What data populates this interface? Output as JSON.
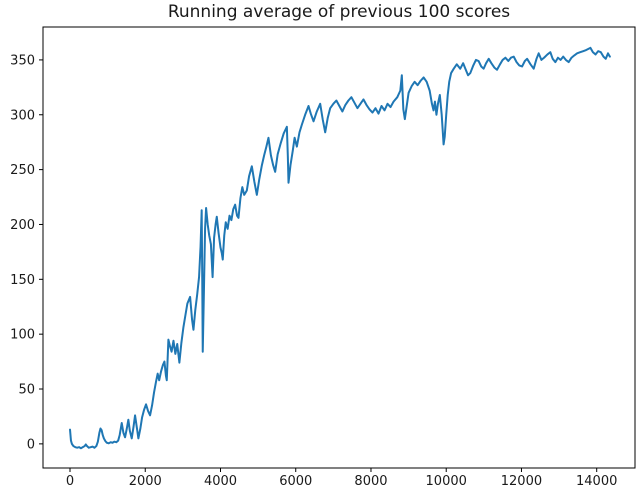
{
  "figure": {
    "background": "#ffffff"
  },
  "chart_data": {
    "type": "line",
    "title": "Running average of previous 100 scores",
    "xlabel": "",
    "ylabel": "",
    "grid": false,
    "legend": null,
    "xlim": [
      -718,
      15018
    ],
    "ylim": [
      -22,
      380
    ],
    "x_ticks": [
      0,
      2000,
      4000,
      6000,
      8000,
      10000,
      12000,
      14000
    ],
    "y_ticks": [
      0,
      50,
      100,
      150,
      200,
      250,
      300,
      350
    ],
    "axis_color": "#000000",
    "series": [
      {
        "name": "running-average",
        "color": "#1f77b4",
        "points": [
          [
            0,
            13
          ],
          [
            25,
            3
          ],
          [
            50,
            0
          ],
          [
            90,
            -2
          ],
          [
            140,
            -3
          ],
          [
            190,
            -3.5
          ],
          [
            240,
            -3
          ],
          [
            290,
            -4
          ],
          [
            340,
            -3
          ],
          [
            390,
            -2
          ],
          [
            420,
            -0.5
          ],
          [
            450,
            -2
          ],
          [
            500,
            -3.5
          ],
          [
            550,
            -3
          ],
          [
            600,
            -2.5
          ],
          [
            650,
            -3.5
          ],
          [
            700,
            -2
          ],
          [
            740,
            2
          ],
          [
            780,
            10
          ],
          [
            810,
            14
          ],
          [
            840,
            12.5
          ],
          [
            870,
            8
          ],
          [
            900,
            5
          ],
          [
            940,
            2.5
          ],
          [
            980,
            1
          ],
          [
            1030,
            0.5
          ],
          [
            1080,
            1.5
          ],
          [
            1130,
            1
          ],
          [
            1180,
            2
          ],
          [
            1230,
            1.5
          ],
          [
            1280,
            3
          ],
          [
            1320,
            8
          ],
          [
            1375,
            19
          ],
          [
            1420,
            10
          ],
          [
            1463,
            6
          ],
          [
            1510,
            14
          ],
          [
            1551,
            22
          ],
          [
            1590,
            12
          ],
          [
            1641,
            5
          ],
          [
            1690,
            16
          ],
          [
            1729,
            26
          ],
          [
            1780,
            14
          ],
          [
            1817,
            5
          ],
          [
            1870,
            14
          ],
          [
            1915,
            24
          ],
          [
            1968,
            31
          ],
          [
            2021,
            36
          ],
          [
            2074,
            30
          ],
          [
            2128,
            26
          ],
          [
            2181,
            35
          ],
          [
            2234,
            47
          ],
          [
            2288,
            57
          ],
          [
            2330,
            64
          ],
          [
            2370,
            58
          ],
          [
            2420,
            66
          ],
          [
            2470,
            72
          ],
          [
            2510,
            75
          ],
          [
            2550,
            62
          ],
          [
            2572,
            58
          ],
          [
            2615,
            95
          ],
          [
            2650,
            90
          ],
          [
            2700,
            84
          ],
          [
            2750,
            94
          ],
          [
            2800,
            82
          ],
          [
            2850,
            91
          ],
          [
            2907,
            74
          ],
          [
            2960,
            92
          ],
          [
            3013,
            106
          ],
          [
            3066,
            117
          ],
          [
            3120,
            128
          ],
          [
            3192,
            134
          ],
          [
            3245,
            113
          ],
          [
            3281,
            104
          ],
          [
            3330,
            122
          ],
          [
            3380,
            136
          ],
          [
            3430,
            152
          ],
          [
            3470,
            180
          ],
          [
            3500,
            213
          ],
          [
            3515,
            150
          ],
          [
            3528,
            84
          ],
          [
            3560,
            140
          ],
          [
            3590,
            196
          ],
          [
            3617,
            215
          ],
          [
            3660,
            200
          ],
          [
            3700,
            190
          ],
          [
            3745,
            182
          ],
          [
            3790,
            152
          ],
          [
            3830,
            188
          ],
          [
            3870,
            200
          ],
          [
            3901,
            207
          ],
          [
            3950,
            192
          ],
          [
            4000,
            179
          ],
          [
            4034,
            174
          ],
          [
            4060,
            168
          ],
          [
            4100,
            190
          ],
          [
            4140,
            202
          ],
          [
            4190,
            196
          ],
          [
            4240,
            208
          ],
          [
            4290,
            204
          ],
          [
            4340,
            214
          ],
          [
            4389,
            218
          ],
          [
            4440,
            208
          ],
          [
            4478,
            206
          ],
          [
            4530,
            224
          ],
          [
            4580,
            234
          ],
          [
            4630,
            227
          ],
          [
            4700,
            231
          ],
          [
            4760,
            244
          ],
          [
            4833,
            253
          ],
          [
            4900,
            239
          ],
          [
            4966,
            227
          ],
          [
            5030,
            241
          ],
          [
            5100,
            254
          ],
          [
            5160,
            263
          ],
          [
            5220,
            271
          ],
          [
            5275,
            279
          ],
          [
            5340,
            263
          ],
          [
            5400,
            254
          ],
          [
            5453,
            248
          ],
          [
            5520,
            264
          ],
          [
            5600,
            274
          ],
          [
            5680,
            283
          ],
          [
            5764,
            289
          ],
          [
            5790,
            262
          ],
          [
            5808,
            238
          ],
          [
            5860,
            254
          ],
          [
            5920,
            267
          ],
          [
            5970,
            279
          ],
          [
            6030,
            271
          ],
          [
            6100,
            284
          ],
          [
            6163,
            291
          ],
          [
            6250,
            300
          ],
          [
            6340,
            308
          ],
          [
            6400,
            301
          ],
          [
            6473,
            294
          ],
          [
            6560,
            303
          ],
          [
            6650,
            310
          ],
          [
            6716,
            296
          ],
          [
            6783,
            284
          ],
          [
            6850,
            297
          ],
          [
            6916,
            306
          ],
          [
            7000,
            310
          ],
          [
            7080,
            313
          ],
          [
            7160,
            308
          ],
          [
            7240,
            303
          ],
          [
            7320,
            309
          ],
          [
            7400,
            313
          ],
          [
            7480,
            316
          ],
          [
            7560,
            311
          ],
          [
            7640,
            306
          ],
          [
            7720,
            310
          ],
          [
            7800,
            314
          ],
          [
            7880,
            309
          ],
          [
            7960,
            305
          ],
          [
            8040,
            302
          ],
          [
            8120,
            306
          ],
          [
            8200,
            301
          ],
          [
            8280,
            308
          ],
          [
            8360,
            304
          ],
          [
            8440,
            310
          ],
          [
            8520,
            307
          ],
          [
            8600,
            312
          ],
          [
            8700,
            316
          ],
          [
            8780,
            322
          ],
          [
            8820,
            336
          ],
          [
            8860,
            305
          ],
          [
            8900,
            296
          ],
          [
            8950,
            308
          ],
          [
            9000,
            320
          ],
          [
            9080,
            326
          ],
          [
            9160,
            330
          ],
          [
            9240,
            327
          ],
          [
            9320,
            331
          ],
          [
            9400,
            334
          ],
          [
            9480,
            330
          ],
          [
            9560,
            322
          ],
          [
            9620,
            310
          ],
          [
            9663,
            304
          ],
          [
            9700,
            312
          ],
          [
            9740,
            300
          ],
          [
            9780,
            310
          ],
          [
            9830,
            318
          ],
          [
            9880,
            300
          ],
          [
            9930,
            273
          ],
          [
            9960,
            280
          ],
          [
            10000,
            300
          ],
          [
            10040,
            318
          ],
          [
            10080,
            330
          ],
          [
            10130,
            338
          ],
          [
            10200,
            342
          ],
          [
            10280,
            346
          ],
          [
            10373,
            342
          ],
          [
            10450,
            347
          ],
          [
            10520,
            341
          ],
          [
            10580,
            336
          ],
          [
            10640,
            338
          ],
          [
            10720,
            345
          ],
          [
            10790,
            350
          ],
          [
            10861,
            349
          ],
          [
            10930,
            344
          ],
          [
            10994,
            342
          ],
          [
            11060,
            347
          ],
          [
            11130,
            351
          ],
          [
            11200,
            347
          ],
          [
            11280,
            343
          ],
          [
            11350,
            341
          ],
          [
            11430,
            346
          ],
          [
            11500,
            350
          ],
          [
            11572,
            352
          ],
          [
            11650,
            349
          ],
          [
            11720,
            352
          ],
          [
            11794,
            353
          ],
          [
            11870,
            348
          ],
          [
            11940,
            345
          ],
          [
            12016,
            344
          ],
          [
            12090,
            349
          ],
          [
            12150,
            351
          ],
          [
            12240,
            346
          ],
          [
            12325,
            342
          ],
          [
            12400,
            351
          ],
          [
            12458,
            356
          ],
          [
            12530,
            350
          ],
          [
            12600,
            352
          ],
          [
            12690,
            355
          ],
          [
            12768,
            357
          ],
          [
            12830,
            351
          ],
          [
            12901,
            348
          ],
          [
            12970,
            352
          ],
          [
            13040,
            350
          ],
          [
            13110,
            353
          ],
          [
            13180,
            350
          ],
          [
            13255,
            348
          ],
          [
            13330,
            352
          ],
          [
            13400,
            354
          ],
          [
            13480,
            356
          ],
          [
            13560,
            357
          ],
          [
            13640,
            358
          ],
          [
            13720,
            359
          ],
          [
            13833,
            361
          ],
          [
            13900,
            357
          ],
          [
            13970,
            355
          ],
          [
            14040,
            358
          ],
          [
            14110,
            357
          ],
          [
            14180,
            353
          ],
          [
            14240,
            351
          ],
          [
            14300,
            356
          ],
          [
            14350,
            353
          ]
        ]
      }
    ]
  }
}
